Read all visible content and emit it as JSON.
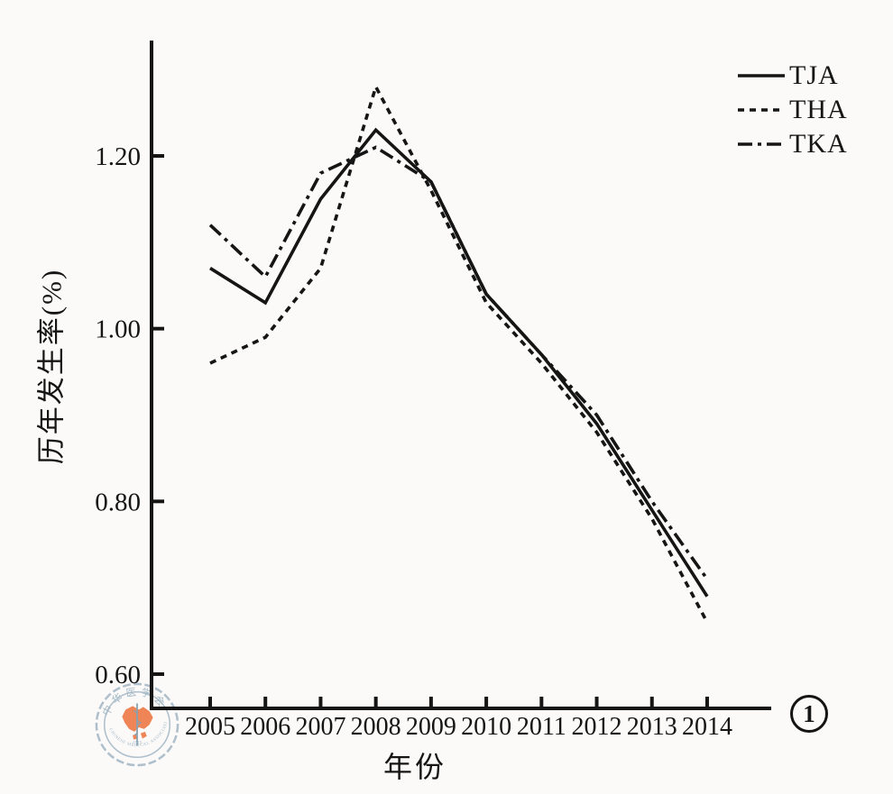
{
  "figure": {
    "badge": "1",
    "watermark": {
      "top_text": "中华医学会",
      "bottom_text": "CHINESE MEDICAL ASSOCIATION",
      "year": "1915"
    }
  },
  "chart_data": {
    "type": "line",
    "title": "",
    "xlabel": "年份",
    "ylabel": "历年发生率(%)",
    "categories": [
      "2005",
      "2006",
      "2007",
      "2008",
      "2009",
      "2010",
      "2011",
      "2012",
      "2013",
      "2014"
    ],
    "series": [
      {
        "name": "TJA",
        "dash": "solid",
        "values": [
          1.07,
          1.03,
          1.15,
          1.23,
          1.17,
          1.04,
          0.97,
          0.89,
          0.79,
          0.69
        ]
      },
      {
        "name": "THA",
        "dash": "dotted",
        "values": [
          0.96,
          0.99,
          1.07,
          1.28,
          1.16,
          1.03,
          0.96,
          0.88,
          0.78,
          0.66
        ]
      },
      {
        "name": "TKA",
        "dash": "dashdot",
        "values": [
          1.12,
          1.06,
          1.18,
          1.21,
          1.17,
          1.04,
          0.97,
          0.9,
          0.8,
          0.71
        ]
      }
    ],
    "ytick_labels": [
      "1.20",
      "1.00",
      "0.80",
      "0.60"
    ],
    "ytick_values": [
      1.2,
      1.0,
      0.8,
      0.6
    ],
    "ylim": [
      0.56,
      1.33
    ],
    "xlim_years": [
      2005,
      2014
    ],
    "grid": false,
    "legend_position": "top-right",
    "line_color": "#151515",
    "watermark_blue": "#a9bcc9",
    "watermark_orange": "#ee7c4a"
  }
}
